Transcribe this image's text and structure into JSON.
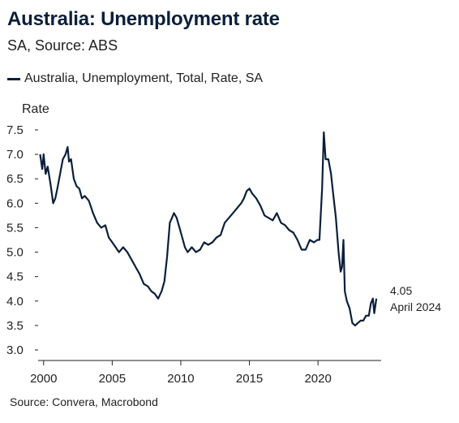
{
  "header": {
    "title": "Australia: Unemployment rate",
    "subtitle": "SA, Source: ABS"
  },
  "legend": {
    "label": "Australia, Unemployment, Total, Rate, SA",
    "color": "#0b1f3a"
  },
  "footer": {
    "source": "Source: Convera, Macrobond"
  },
  "annotation": {
    "value": "4.05",
    "date": "April 2024"
  },
  "chart_data": {
    "type": "line",
    "title": "Australia: Unemployment rate",
    "subtitle": "SA, Source: ABS",
    "ylabel": "Rate",
    "xlabel": "",
    "ylim": [
      3.0,
      7.5
    ],
    "xlim": [
      1999.6,
      2024.6
    ],
    "yticks": [
      "7.5",
      "7.0",
      "6.5",
      "6.0",
      "5.5",
      "5.0",
      "4.5",
      "4.0",
      "3.5",
      "3.0"
    ],
    "xticks": [
      "2000",
      "2005",
      "2010",
      "2015",
      "2020"
    ],
    "grid": false,
    "legend_position": "top-left",
    "series": [
      {
        "name": "Australia, Unemployment, Total, Rate, SA",
        "color": "#0b1f3a",
        "points": [
          [
            1999.75,
            7.0
          ],
          [
            1999.9,
            6.7
          ],
          [
            2000.0,
            7.0
          ],
          [
            2000.15,
            6.6
          ],
          [
            2000.3,
            6.75
          ],
          [
            2000.5,
            6.4
          ],
          [
            2000.7,
            6.0
          ],
          [
            2000.85,
            6.1
          ],
          [
            2001.0,
            6.3
          ],
          [
            2001.2,
            6.6
          ],
          [
            2001.4,
            6.9
          ],
          [
            2001.6,
            7.0
          ],
          [
            2001.75,
            7.15
          ],
          [
            2001.85,
            6.85
          ],
          [
            2002.0,
            6.9
          ],
          [
            2002.2,
            6.5
          ],
          [
            2002.4,
            6.35
          ],
          [
            2002.6,
            6.3
          ],
          [
            2002.8,
            6.1
          ],
          [
            2003.0,
            6.15
          ],
          [
            2003.3,
            6.05
          ],
          [
            2003.6,
            5.8
          ],
          [
            2003.9,
            5.6
          ],
          [
            2004.2,
            5.5
          ],
          [
            2004.5,
            5.55
          ],
          [
            2004.75,
            5.3
          ],
          [
            2005.0,
            5.2
          ],
          [
            2005.25,
            5.1
          ],
          [
            2005.5,
            5.0
          ],
          [
            2005.8,
            5.1
          ],
          [
            2006.1,
            5.0
          ],
          [
            2006.4,
            4.85
          ],
          [
            2006.7,
            4.7
          ],
          [
            2007.0,
            4.55
          ],
          [
            2007.3,
            4.35
          ],
          [
            2007.6,
            4.3
          ],
          [
            2007.85,
            4.2
          ],
          [
            2008.1,
            4.15
          ],
          [
            2008.35,
            4.05
          ],
          [
            2008.6,
            4.2
          ],
          [
            2008.8,
            4.4
          ],
          [
            2009.0,
            4.9
          ],
          [
            2009.2,
            5.6
          ],
          [
            2009.35,
            5.7
          ],
          [
            2009.5,
            5.8
          ],
          [
            2009.7,
            5.7
          ],
          [
            2009.9,
            5.5
          ],
          [
            2010.1,
            5.3
          ],
          [
            2010.3,
            5.1
          ],
          [
            2010.5,
            5.0
          ],
          [
            2010.8,
            5.1
          ],
          [
            2011.1,
            5.0
          ],
          [
            2011.4,
            5.05
          ],
          [
            2011.7,
            5.2
          ],
          [
            2012.0,
            5.15
          ],
          [
            2012.3,
            5.2
          ],
          [
            2012.6,
            5.3
          ],
          [
            2012.9,
            5.35
          ],
          [
            2013.2,
            5.6
          ],
          [
            2013.5,
            5.7
          ],
          [
            2013.8,
            5.8
          ],
          [
            2014.1,
            5.9
          ],
          [
            2014.4,
            6.0
          ],
          [
            2014.6,
            6.1
          ],
          [
            2014.8,
            6.25
          ],
          [
            2015.0,
            6.3
          ],
          [
            2015.2,
            6.2
          ],
          [
            2015.5,
            6.1
          ],
          [
            2015.8,
            5.95
          ],
          [
            2016.1,
            5.75
          ],
          [
            2016.4,
            5.7
          ],
          [
            2016.7,
            5.65
          ],
          [
            2017.0,
            5.8
          ],
          [
            2017.3,
            5.6
          ],
          [
            2017.6,
            5.55
          ],
          [
            2017.9,
            5.45
          ],
          [
            2018.2,
            5.4
          ],
          [
            2018.5,
            5.25
          ],
          [
            2018.8,
            5.05
          ],
          [
            2019.1,
            5.05
          ],
          [
            2019.4,
            5.25
          ],
          [
            2019.7,
            5.2
          ],
          [
            2019.95,
            5.25
          ],
          [
            2020.1,
            5.25
          ],
          [
            2020.3,
            6.3
          ],
          [
            2020.42,
            7.45
          ],
          [
            2020.55,
            6.9
          ],
          [
            2020.75,
            6.9
          ],
          [
            2020.95,
            6.6
          ],
          [
            2021.1,
            6.2
          ],
          [
            2021.3,
            5.7
          ],
          [
            2021.5,
            5.0
          ],
          [
            2021.65,
            4.6
          ],
          [
            2021.75,
            4.7
          ],
          [
            2021.85,
            5.25
          ],
          [
            2021.95,
            4.2
          ],
          [
            2022.1,
            4.0
          ],
          [
            2022.3,
            3.85
          ],
          [
            2022.5,
            3.55
          ],
          [
            2022.7,
            3.5
          ],
          [
            2022.9,
            3.55
          ],
          [
            2023.1,
            3.6
          ],
          [
            2023.3,
            3.6
          ],
          [
            2023.5,
            3.7
          ],
          [
            2023.7,
            3.7
          ],
          [
            2023.85,
            3.95
          ],
          [
            2024.0,
            4.05
          ],
          [
            2024.1,
            3.75
          ],
          [
            2024.25,
            4.05
          ]
        ]
      }
    ]
  }
}
